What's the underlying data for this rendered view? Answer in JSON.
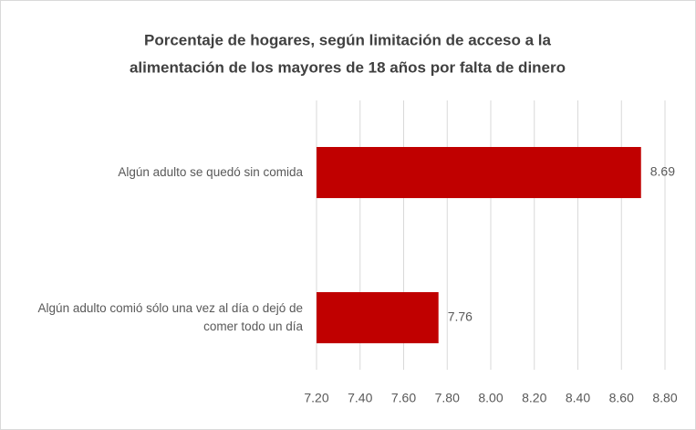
{
  "chart_data": {
    "type": "bar",
    "orientation": "horizontal",
    "title": [
      "Porcentaje de hogares, según limitación de acceso a la",
      "alimentación de los mayores de 18 años por falta de dinero"
    ],
    "categories": [
      "Algún adulto se quedó sin comida",
      "Algún adulto comió sólo una vez al día o dejó de comer todo un día"
    ],
    "values": [
      8.69,
      7.76
    ],
    "color": "#c00000",
    "xlim": [
      7.2,
      8.8
    ],
    "xticks": [
      {
        "value": 7.2,
        "label": "7.20"
      },
      {
        "value": 7.4,
        "label": "7.40"
      },
      {
        "value": 7.6,
        "label": "7.60"
      },
      {
        "value": 7.8,
        "label": "7.80"
      },
      {
        "value": 8,
        "label": "8.00"
      },
      {
        "value": 8.2,
        "label": "8.20"
      },
      {
        "value": 8.4,
        "label": "8.40"
      },
      {
        "value": 8.6,
        "label": "8.60"
      },
      {
        "value": 8.8,
        "label": "8.80"
      }
    ],
    "grid": true
  }
}
